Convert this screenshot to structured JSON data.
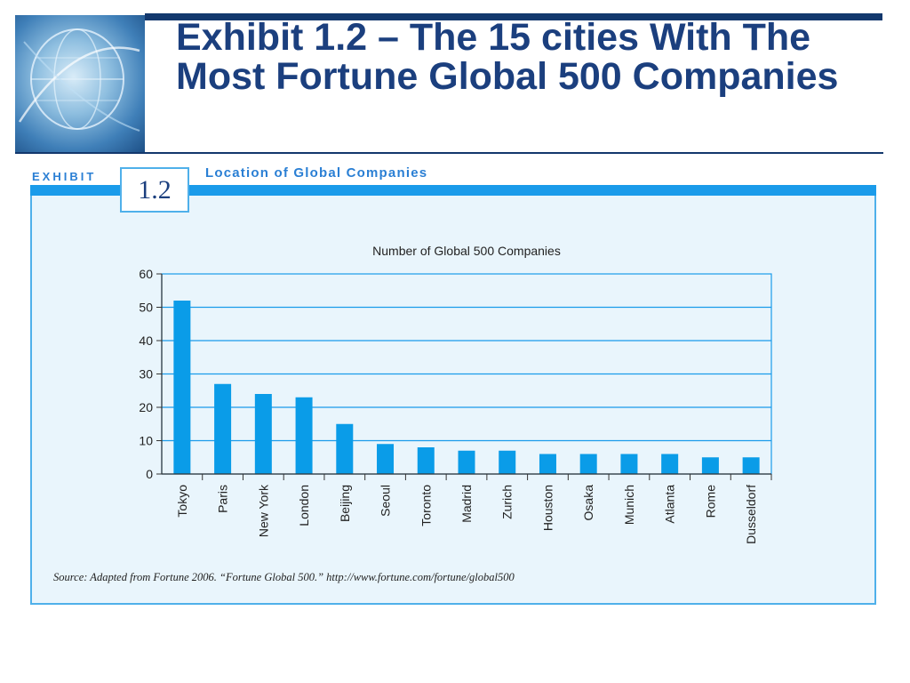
{
  "header": {
    "title": "Exhibit 1.2 – The 15 cities With The Most Fortune Global 500 Companies"
  },
  "exhibit": {
    "word": "EXHIBIT",
    "number": "1.2",
    "caption": "Location of Global Companies",
    "source": "Source:  Adapted from Fortune 2006. “Fortune Global 500.” http://www.fortune.com/fortune/global500"
  },
  "colors": {
    "navy": "#13386d",
    "title": "#1b3f7e",
    "accent": "#1a9bea",
    "bar": "#0a9ce8",
    "panel_bg": "#e9f5fc"
  },
  "chart_data": {
    "type": "bar",
    "title": "Number of Global 500 Companies",
    "xlabel": "",
    "ylabel": "",
    "categories": [
      "Tokyo",
      "Paris",
      "New York",
      "London",
      "Beijing",
      "Seoul",
      "Toronto",
      "Madrid",
      "Zurich",
      "Houston",
      "Osaka",
      "Munich",
      "Atlanta",
      "Rome",
      "Dusseldorf"
    ],
    "values": [
      52,
      27,
      24,
      23,
      15,
      9,
      8,
      7,
      7,
      6,
      6,
      6,
      6,
      5,
      5
    ],
    "ylim": [
      0,
      60
    ],
    "yticks": [
      0,
      10,
      20,
      30,
      40,
      50,
      60
    ],
    "grid": true,
    "legend": "none"
  }
}
